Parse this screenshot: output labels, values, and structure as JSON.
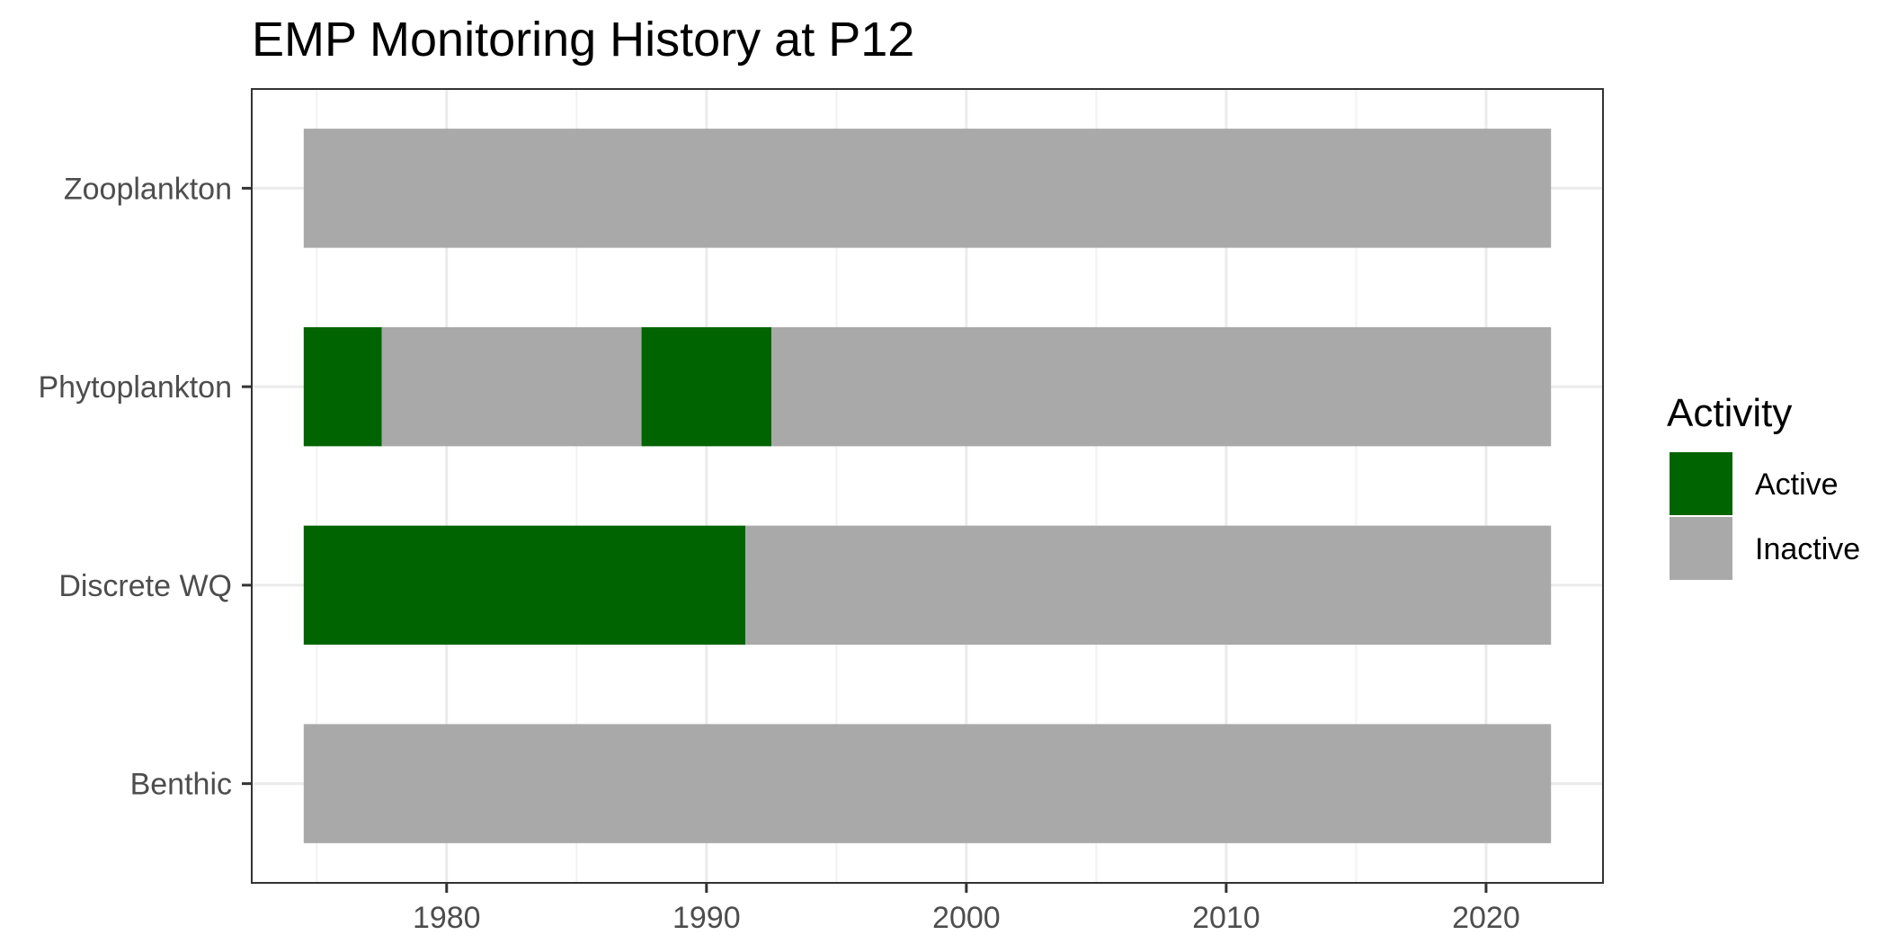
{
  "chart_data": {
    "type": "bar",
    "orientation": "horizontal-timeline",
    "title": "EMP Monitoring History at P12",
    "xlabel": "",
    "ylabel": "",
    "xlim": [
      1972.5,
      2024.5
    ],
    "x_ticks": [
      1980,
      1990,
      2000,
      2010,
      2020
    ],
    "x_minor_ticks": [
      1975,
      1985,
      1995,
      2005,
      2015
    ],
    "categories": [
      "Zooplankton",
      "Phytoplankton",
      "Discrete WQ",
      "Benthic"
    ],
    "legend": {
      "title": "Activity",
      "position": "right",
      "entries": [
        {
          "label": "Active",
          "color": "#006400"
        },
        {
          "label": "Inactive",
          "color": "#a9a9a9"
        }
      ]
    },
    "grid": true,
    "segments": [
      {
        "category": "Zooplankton",
        "start": 1974.5,
        "end": 2022.5,
        "status": "Inactive"
      },
      {
        "category": "Phytoplankton",
        "start": 1974.5,
        "end": 1977.5,
        "status": "Active"
      },
      {
        "category": "Phytoplankton",
        "start": 1977.5,
        "end": 1987.5,
        "status": "Inactive"
      },
      {
        "category": "Phytoplankton",
        "start": 1987.5,
        "end": 1992.5,
        "status": "Active"
      },
      {
        "category": "Phytoplankton",
        "start": 1992.5,
        "end": 2022.5,
        "status": "Inactive"
      },
      {
        "category": "Discrete WQ",
        "start": 1974.5,
        "end": 1991.5,
        "status": "Active"
      },
      {
        "category": "Discrete WQ",
        "start": 1991.5,
        "end": 2022.5,
        "status": "Inactive"
      },
      {
        "category": "Benthic",
        "start": 1974.5,
        "end": 2022.5,
        "status": "Inactive"
      }
    ]
  }
}
